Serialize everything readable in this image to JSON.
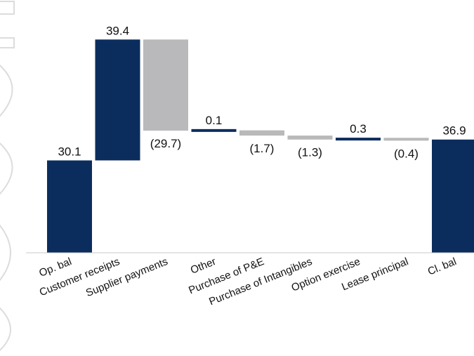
{
  "chart_data": {
    "type": "bar",
    "subtype": "waterfall",
    "title": "",
    "xlabel": "",
    "ylabel": "",
    "categories": [
      "Op. bal",
      "Customer receipts",
      "Supplier payments",
      "Other",
      "Purchase of P&E",
      "Purchase of Intangibles",
      "Option exercise",
      "Lease principal",
      "Cl. bal"
    ],
    "values": [
      30.1,
      39.4,
      -29.7,
      0.1,
      -1.7,
      -1.3,
      0.3,
      -0.4,
      36.9
    ],
    "value_labels": [
      "30.1",
      "39.4",
      "(29.7)",
      "0.1",
      "(1.7)",
      "(1.3)",
      "0.3",
      "(0.4)",
      "36.9"
    ],
    "bar_kind": [
      "total",
      "delta",
      "delta",
      "delta",
      "delta",
      "delta",
      "delta",
      "delta",
      "total"
    ],
    "ylim": [
      0,
      70
    ],
    "grid": false,
    "legend": "none"
  },
  "colors": {
    "increase": "#0b2d5e",
    "decrease": "#b9b9bb",
    "total": "#0b2d5e",
    "baseline": "#c8c8c8",
    "watermark": "#dcdcdc"
  }
}
